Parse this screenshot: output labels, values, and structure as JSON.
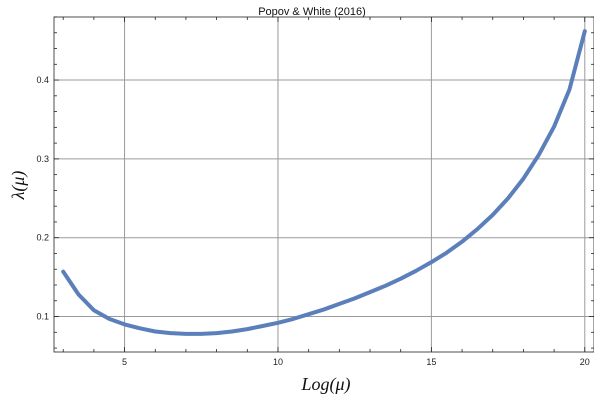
{
  "chart_data": {
    "type": "line",
    "title": "Popov & White (2016)",
    "xlabel": "Log(μ)",
    "ylabel": "λ(μ)",
    "xlim": [
      2.7,
      20.3
    ],
    "ylim": [
      0.055,
      0.48
    ],
    "x_ticks": [
      5,
      10,
      15,
      20
    ],
    "x_tick_labels": [
      "5",
      "10",
      "15",
      "20"
    ],
    "y_ticks": [
      0.1,
      0.2,
      0.3,
      0.4
    ],
    "y_tick_labels": [
      "0.1",
      "0.2",
      "0.3",
      "0.4"
    ],
    "grid": true,
    "colors": {
      "line": "#5b7fba"
    },
    "series": [
      {
        "x": [
          3,
          3.5,
          4,
          4.5,
          5,
          5.5,
          6,
          6.5,
          7,
          7.5,
          8,
          8.5,
          9,
          9.5,
          10,
          10.5,
          11,
          11.5,
          12,
          12.5,
          13,
          13.5,
          14,
          14.5,
          15,
          15.5,
          16,
          16.5,
          17,
          17.5,
          18,
          18.5,
          19,
          19.5,
          20
        ],
        "y": [
          0.157,
          0.128,
          0.108,
          0.097,
          0.09,
          0.085,
          0.081,
          0.079,
          0.078,
          0.078,
          0.079,
          0.081,
          0.084,
          0.088,
          0.092,
          0.097,
          0.103,
          0.109,
          0.116,
          0.123,
          0.131,
          0.139,
          0.148,
          0.158,
          0.169,
          0.181,
          0.195,
          0.211,
          0.229,
          0.25,
          0.275,
          0.305,
          0.341,
          0.388,
          0.462
        ]
      }
    ]
  }
}
